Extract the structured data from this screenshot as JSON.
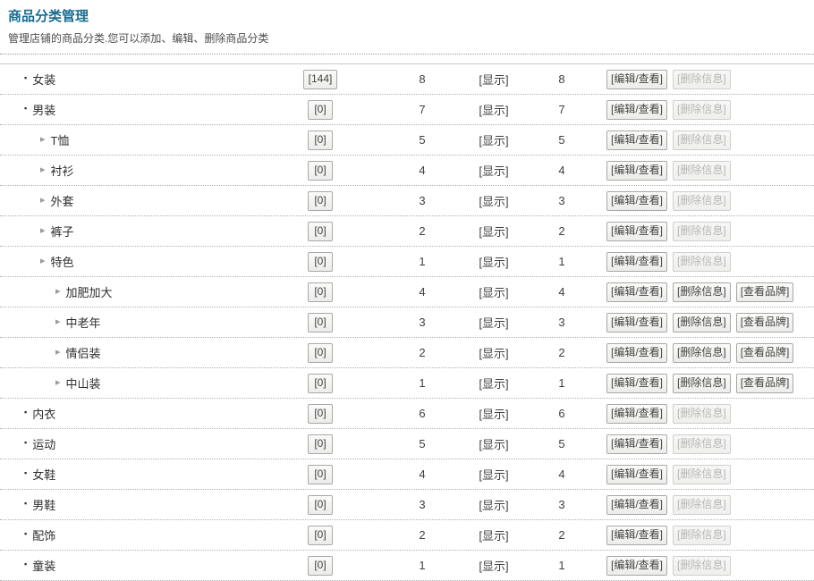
{
  "page": {
    "title": "商品分类管理",
    "subtitle": "管理店铺的商品分类.您可以添加、编辑、删除商品分类"
  },
  "labels": {
    "show": "[显示]",
    "edit": "[编辑/查看]",
    "delete": "[删除信息]",
    "brand": "[查看品牌]"
  },
  "colors": {
    "title": "#176d91",
    "button_text": "#444444",
    "button_border": "#a8a8a6",
    "disabled_text": "#b7b7b7",
    "separator": "#b0b0b0"
  },
  "icons": {
    "level1_bullet": "▪",
    "sub_arrow": "▸"
  },
  "rows": [
    {
      "name": "女装",
      "level": 1,
      "count": "[144]",
      "num1": "8",
      "num2": "8",
      "delete_enabled": false,
      "brand": false
    },
    {
      "name": "男装",
      "level": 1,
      "count": "[0]",
      "num1": "7",
      "num2": "7",
      "delete_enabled": false,
      "brand": false
    },
    {
      "name": "T恤",
      "level": 2,
      "count": "[0]",
      "num1": "5",
      "num2": "5",
      "delete_enabled": false,
      "brand": false
    },
    {
      "name": "衬衫",
      "level": 2,
      "count": "[0]",
      "num1": "4",
      "num2": "4",
      "delete_enabled": false,
      "brand": false
    },
    {
      "name": "外套",
      "level": 2,
      "count": "[0]",
      "num1": "3",
      "num2": "3",
      "delete_enabled": false,
      "brand": false
    },
    {
      "name": "裤子",
      "level": 2,
      "count": "[0]",
      "num1": "2",
      "num2": "2",
      "delete_enabled": false,
      "brand": false
    },
    {
      "name": "特色",
      "level": 2,
      "count": "[0]",
      "num1": "1",
      "num2": "1",
      "delete_enabled": false,
      "brand": false
    },
    {
      "name": "加肥加大",
      "level": 3,
      "count": "[0]",
      "num1": "4",
      "num2": "4",
      "delete_enabled": true,
      "brand": true
    },
    {
      "name": "中老年",
      "level": 3,
      "count": "[0]",
      "num1": "3",
      "num2": "3",
      "delete_enabled": true,
      "brand": true
    },
    {
      "name": "情侣装",
      "level": 3,
      "count": "[0]",
      "num1": "2",
      "num2": "2",
      "delete_enabled": true,
      "brand": true
    },
    {
      "name": "中山装",
      "level": 3,
      "count": "[0]",
      "num1": "1",
      "num2": "1",
      "delete_enabled": true,
      "brand": true
    },
    {
      "name": "内衣",
      "level": 1,
      "count": "[0]",
      "num1": "6",
      "num2": "6",
      "delete_enabled": false,
      "brand": false
    },
    {
      "name": "运动",
      "level": 1,
      "count": "[0]",
      "num1": "5",
      "num2": "5",
      "delete_enabled": false,
      "brand": false
    },
    {
      "name": "女鞋",
      "level": 1,
      "count": "[0]",
      "num1": "4",
      "num2": "4",
      "delete_enabled": false,
      "brand": false
    },
    {
      "name": "男鞋",
      "level": 1,
      "count": "[0]",
      "num1": "3",
      "num2": "3",
      "delete_enabled": false,
      "brand": false
    },
    {
      "name": "配饰",
      "level": 1,
      "count": "[0]",
      "num1": "2",
      "num2": "2",
      "delete_enabled": false,
      "brand": false
    },
    {
      "name": "童装",
      "level": 1,
      "count": "[0]",
      "num1": "1",
      "num2": "1",
      "delete_enabled": false,
      "brand": false
    }
  ]
}
